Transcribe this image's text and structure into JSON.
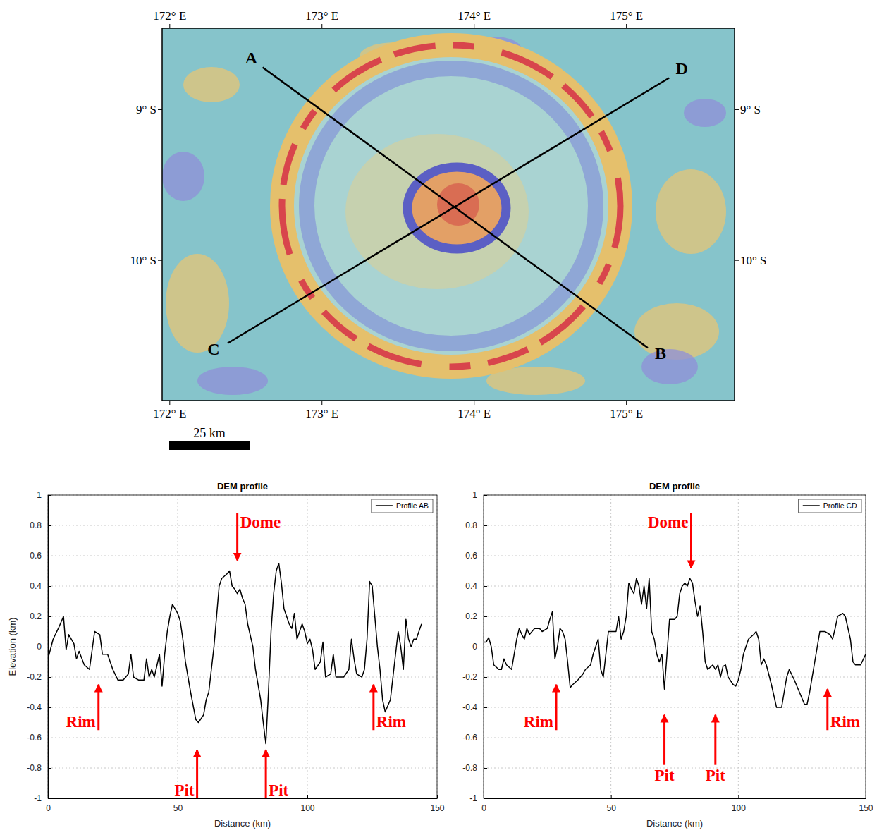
{
  "map": {
    "xlim": [
      171.95,
      175.71
    ],
    "ylim": [
      -8.46,
      -10.93
    ],
    "lon_ticks": [
      {
        "value": 172,
        "label": "172° E"
      },
      {
        "value": 173,
        "label": "173° E"
      },
      {
        "value": 174,
        "label": "174° E"
      },
      {
        "value": 175,
        "label": "175° E"
      }
    ],
    "lat_ticks": [
      {
        "value": -9,
        "label": "9° S"
      },
      {
        "value": -10,
        "label": "10° S"
      }
    ],
    "points": [
      {
        "label": "A",
        "lon": 172.61,
        "lat": -8.72
      },
      {
        "label": "B",
        "lon": 175.14,
        "lat": -10.58
      },
      {
        "label": "C",
        "lon": 172.38,
        "lat": -10.55
      },
      {
        "label": "D",
        "lon": 175.28,
        "lat": -8.79
      }
    ],
    "scale_bar": "25 km"
  },
  "chart_data": [
    {
      "type": "line",
      "title": "DEM profile",
      "xlabel": "Distance (km)",
      "ylabel": "Elevation (km)",
      "xlim": [
        0,
        150
      ],
      "ylim": [
        -1,
        1
      ],
      "xticks": [
        0,
        50,
        100,
        150
      ],
      "yticks": [
        -1,
        -0.8,
        -0.6,
        -0.4,
        -0.2,
        0,
        0.2,
        0.4,
        0.6,
        0.8,
        1
      ],
      "grid": true,
      "legend": "upper right",
      "x": [
        0,
        2,
        4,
        6,
        7,
        8,
        10,
        11,
        12,
        14,
        16,
        18,
        20,
        21,
        23,
        25,
        27,
        29,
        31,
        32,
        33,
        35,
        37,
        38,
        39,
        40,
        41,
        43,
        44,
        45,
        46,
        47,
        48,
        50,
        51,
        52,
        53,
        55,
        57,
        58,
        60,
        61,
        62,
        63,
        64,
        65,
        66,
        67,
        69,
        70,
        71,
        72,
        73,
        74,
        75,
        76,
        77,
        79,
        80,
        82,
        83,
        84,
        85,
        86,
        87,
        88,
        89,
        90,
        91,
        92,
        93,
        94,
        95,
        96,
        97,
        98,
        99,
        100,
        101,
        102,
        103,
        105,
        106,
        107,
        109,
        110,
        111,
        113,
        114,
        116,
        117,
        118,
        119,
        121,
        122,
        123,
        124,
        125,
        126,
        127,
        128,
        129,
        130,
        132,
        133,
        134,
        135,
        136,
        137,
        138,
        139,
        140,
        141,
        142,
        143,
        144
      ],
      "series": [
        {
          "name": "Profile AB",
          "color": "#000000",
          "values": [
            -0.08,
            0.05,
            0.12,
            0.2,
            -0.02,
            0.08,
            0.02,
            -0.08,
            -0.03,
            -0.12,
            -0.15,
            0.1,
            0.08,
            -0.05,
            -0.05,
            -0.15,
            -0.22,
            -0.22,
            -0.18,
            -0.05,
            -0.2,
            -0.22,
            -0.22,
            -0.08,
            -0.2,
            -0.15,
            -0.2,
            -0.05,
            -0.26,
            -0.05,
            0.1,
            0.2,
            0.28,
            0.22,
            0.17,
            0.05,
            -0.1,
            -0.3,
            -0.48,
            -0.5,
            -0.45,
            -0.35,
            -0.3,
            -0.15,
            0,
            0.2,
            0.4,
            0.45,
            0.48,
            0.5,
            0.4,
            0.38,
            0.35,
            0.38,
            0.32,
            0.28,
            0.15,
            0,
            -0.15,
            -0.35,
            -0.5,
            -0.64,
            -0.3,
            0.1,
            0.35,
            0.5,
            0.55,
            0.42,
            0.25,
            0.2,
            0.15,
            0.12,
            0.22,
            0.05,
            0.1,
            0.15,
            0.1,
            0.02,
            0.05,
            -0.02,
            -0.15,
            -0.1,
            0.03,
            -0.2,
            -0.18,
            -0.05,
            -0.2,
            -0.2,
            -0.2,
            -0.15,
            0.05,
            -0.08,
            -0.18,
            -0.2,
            -0.15,
            0.05,
            0.43,
            0.4,
            0.2,
            0,
            -0.15,
            -0.35,
            -0.43,
            -0.35,
            -0.2,
            -0.05,
            0.1,
            0,
            -0.15,
            0.18,
            0.05,
            0,
            0.05,
            0.05,
            0.1,
            0.15
          ]
        }
      ],
      "annotations": [
        {
          "text": "Dome",
          "x": 73,
          "y": 0.57,
          "y_from": 0.88
        },
        {
          "text": "Rim",
          "x": 19.5,
          "y": -0.25,
          "y_from": -0.55
        },
        {
          "text": "Pit",
          "x": 57.5,
          "y": -0.68,
          "y_from": -1
        },
        {
          "text": "Pit",
          "x": 84,
          "y": -0.68,
          "y_from": -1
        },
        {
          "text": "Rim",
          "x": 125.5,
          "y": -0.25,
          "y_from": -0.55
        }
      ]
    },
    {
      "type": "line",
      "title": "DEM profile",
      "xlabel": "Distance (km)",
      "xlim": [
        0,
        150
      ],
      "ylim": [
        -1,
        1
      ],
      "xticks": [
        0,
        50,
        100,
        150
      ],
      "yticks": [
        -1,
        -0.8,
        -0.6,
        -0.4,
        -0.2,
        0,
        0.2,
        0.4,
        0.6,
        0.8,
        1
      ],
      "grid": true,
      "legend": "upper right",
      "x": [
        0,
        1,
        2,
        3,
        4,
        6,
        7,
        8,
        9,
        11,
        12,
        13,
        14,
        15,
        16,
        17,
        18,
        19,
        20,
        22,
        23,
        25,
        26,
        27,
        28,
        29,
        30,
        31,
        32,
        33,
        34,
        35,
        37,
        39,
        40,
        42,
        43,
        44,
        45,
        46,
        47,
        48,
        49,
        50,
        52,
        53,
        54,
        55,
        56,
        57,
        58,
        59,
        60,
        61,
        62,
        63,
        64,
        65,
        66,
        67,
        68,
        69,
        70,
        71,
        72,
        73,
        75,
        76,
        77,
        78,
        79,
        80,
        81,
        82,
        83,
        84,
        85,
        86,
        87,
        88,
        90,
        91,
        92,
        93,
        94,
        95,
        96,
        98,
        99,
        100,
        101,
        102,
        104,
        106,
        107,
        108,
        109,
        110,
        111,
        113,
        115,
        117,
        118,
        119,
        120,
        122,
        124,
        126,
        127,
        128,
        130,
        132,
        134,
        136,
        137,
        138,
        139,
        141,
        142,
        144,
        145,
        146,
        148,
        150
      ],
      "series": [
        {
          "name": "Profile CD",
          "color": "#000000",
          "values": [
            0.03,
            0.03,
            0.06,
            0,
            -0.12,
            -0.15,
            -0.15,
            -0.08,
            -0.12,
            -0.15,
            -0.05,
            0.05,
            0.12,
            0.08,
            0.05,
            0.12,
            0.08,
            0.1,
            0.12,
            0.12,
            0.1,
            0.12,
            0.18,
            0.23,
            -0.08,
            0,
            0.12,
            0.1,
            0.05,
            -0.1,
            -0.27,
            -0.25,
            -0.22,
            -0.18,
            -0.15,
            -0.12,
            -0.05,
            0,
            0.05,
            -0.15,
            -0.2,
            -0.05,
            0.1,
            0.1,
            0.1,
            0.2,
            0.05,
            0.1,
            0.2,
            0.42,
            0.38,
            0.35,
            0.45,
            0.4,
            0.28,
            0.4,
            0.25,
            0.45,
            0.1,
            0.05,
            -0.05,
            -0.1,
            -0.05,
            -0.28,
            -0.05,
            0.18,
            0.18,
            0.2,
            0.35,
            0.4,
            0.42,
            0.4,
            0.45,
            0.42,
            0.3,
            0.2,
            0.27,
            0.1,
            -0.1,
            -0.15,
            -0.12,
            -0.15,
            -0.12,
            -0.2,
            -0.13,
            -0.12,
            -0.2,
            -0.25,
            -0.26,
            -0.22,
            -0.15,
            -0.05,
            0.05,
            0.08,
            0.1,
            0.05,
            -0.12,
            -0.08,
            -0.12,
            -0.25,
            -0.4,
            -0.4,
            -0.3,
            -0.2,
            -0.15,
            -0.22,
            -0.3,
            -0.38,
            -0.38,
            -0.3,
            -0.1,
            0.1,
            0.1,
            0.08,
            0.05,
            0.12,
            0.2,
            0.22,
            0.2,
            0.05,
            -0.1,
            -0.12,
            -0.12,
            -0.05
          ]
        }
      ],
      "annotations": [
        {
          "text": "Dome",
          "x": 81.5,
          "y": 0.52,
          "y_from": 0.88
        },
        {
          "text": "Rim",
          "x": 28.5,
          "y": -0.25,
          "y_from": -0.55
        },
        {
          "text": "Pit",
          "x": 71,
          "y": -0.45,
          "y_from": -0.78
        },
        {
          "text": "Pit",
          "x": 91,
          "y": -0.45,
          "y_from": -0.78
        },
        {
          "text": "Rim",
          "x": 135,
          "y": -0.28,
          "y_from": -0.55
        }
      ]
    }
  ]
}
